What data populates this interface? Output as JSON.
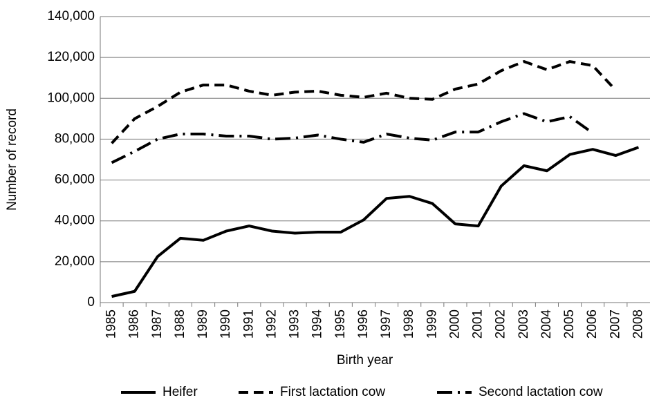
{
  "chart_data": {
    "type": "line",
    "x_label": "Birth year",
    "y_label": "Number of record",
    "categories": [
      "1985",
      "1986",
      "1987",
      "1988",
      "1989",
      "1990",
      "1991",
      "1992",
      "1993",
      "1994",
      "1995",
      "1996",
      "1997",
      "1998",
      "1999",
      "2000",
      "2001",
      "2002",
      "2003",
      "2004",
      "2005",
      "2006",
      "2007",
      "2008"
    ],
    "series": [
      {
        "name": "Heifer",
        "color": "#000000",
        "dash": "solid",
        "values": [
          3000,
          5500,
          22500,
          31500,
          30500,
          35000,
          37500,
          35000,
          34000,
          34500,
          34500,
          40500,
          51000,
          52000,
          48500,
          38500,
          37500,
          57000,
          67000,
          64500,
          72500,
          75000,
          72000,
          76000
        ]
      },
      {
        "name": "First lactation cow",
        "color": "#000000",
        "dash": "dashed",
        "values": [
          78000,
          90000,
          96000,
          103000,
          106500,
          106500,
          103500,
          101500,
          103000,
          103500,
          101500,
          100500,
          102500,
          100000,
          99500,
          104500,
          107000,
          113500,
          118000,
          114000,
          118000,
          116000,
          104000,
          null
        ]
      },
      {
        "name": "Second lactation cow",
        "color": "#000000",
        "dash": "dashdot",
        "values": [
          68500,
          74000,
          80000,
          82500,
          82500,
          81500,
          81500,
          80000,
          80500,
          82000,
          80000,
          78500,
          82500,
          80500,
          79500,
          83500,
          83500,
          88500,
          92500,
          88500,
          91000,
          83000,
          null,
          null
        ]
      }
    ],
    "ylim": [
      0,
      140000
    ],
    "yticks": [
      0,
      {
        "value": 20000,
        "label": "20,000"
      },
      {
        "value": 40000,
        "label": "40,000"
      },
      {
        "value": 60000,
        "label": "60,000"
      },
      {
        "value": 80000,
        "label": "80,000"
      },
      {
        "value": 100000,
        "label": "100,000"
      },
      {
        "value": 120000,
        "label": "120,000"
      },
      {
        "value": 140000,
        "label": "140,000"
      }
    ],
    "grid": true,
    "legend": "bottom"
  }
}
